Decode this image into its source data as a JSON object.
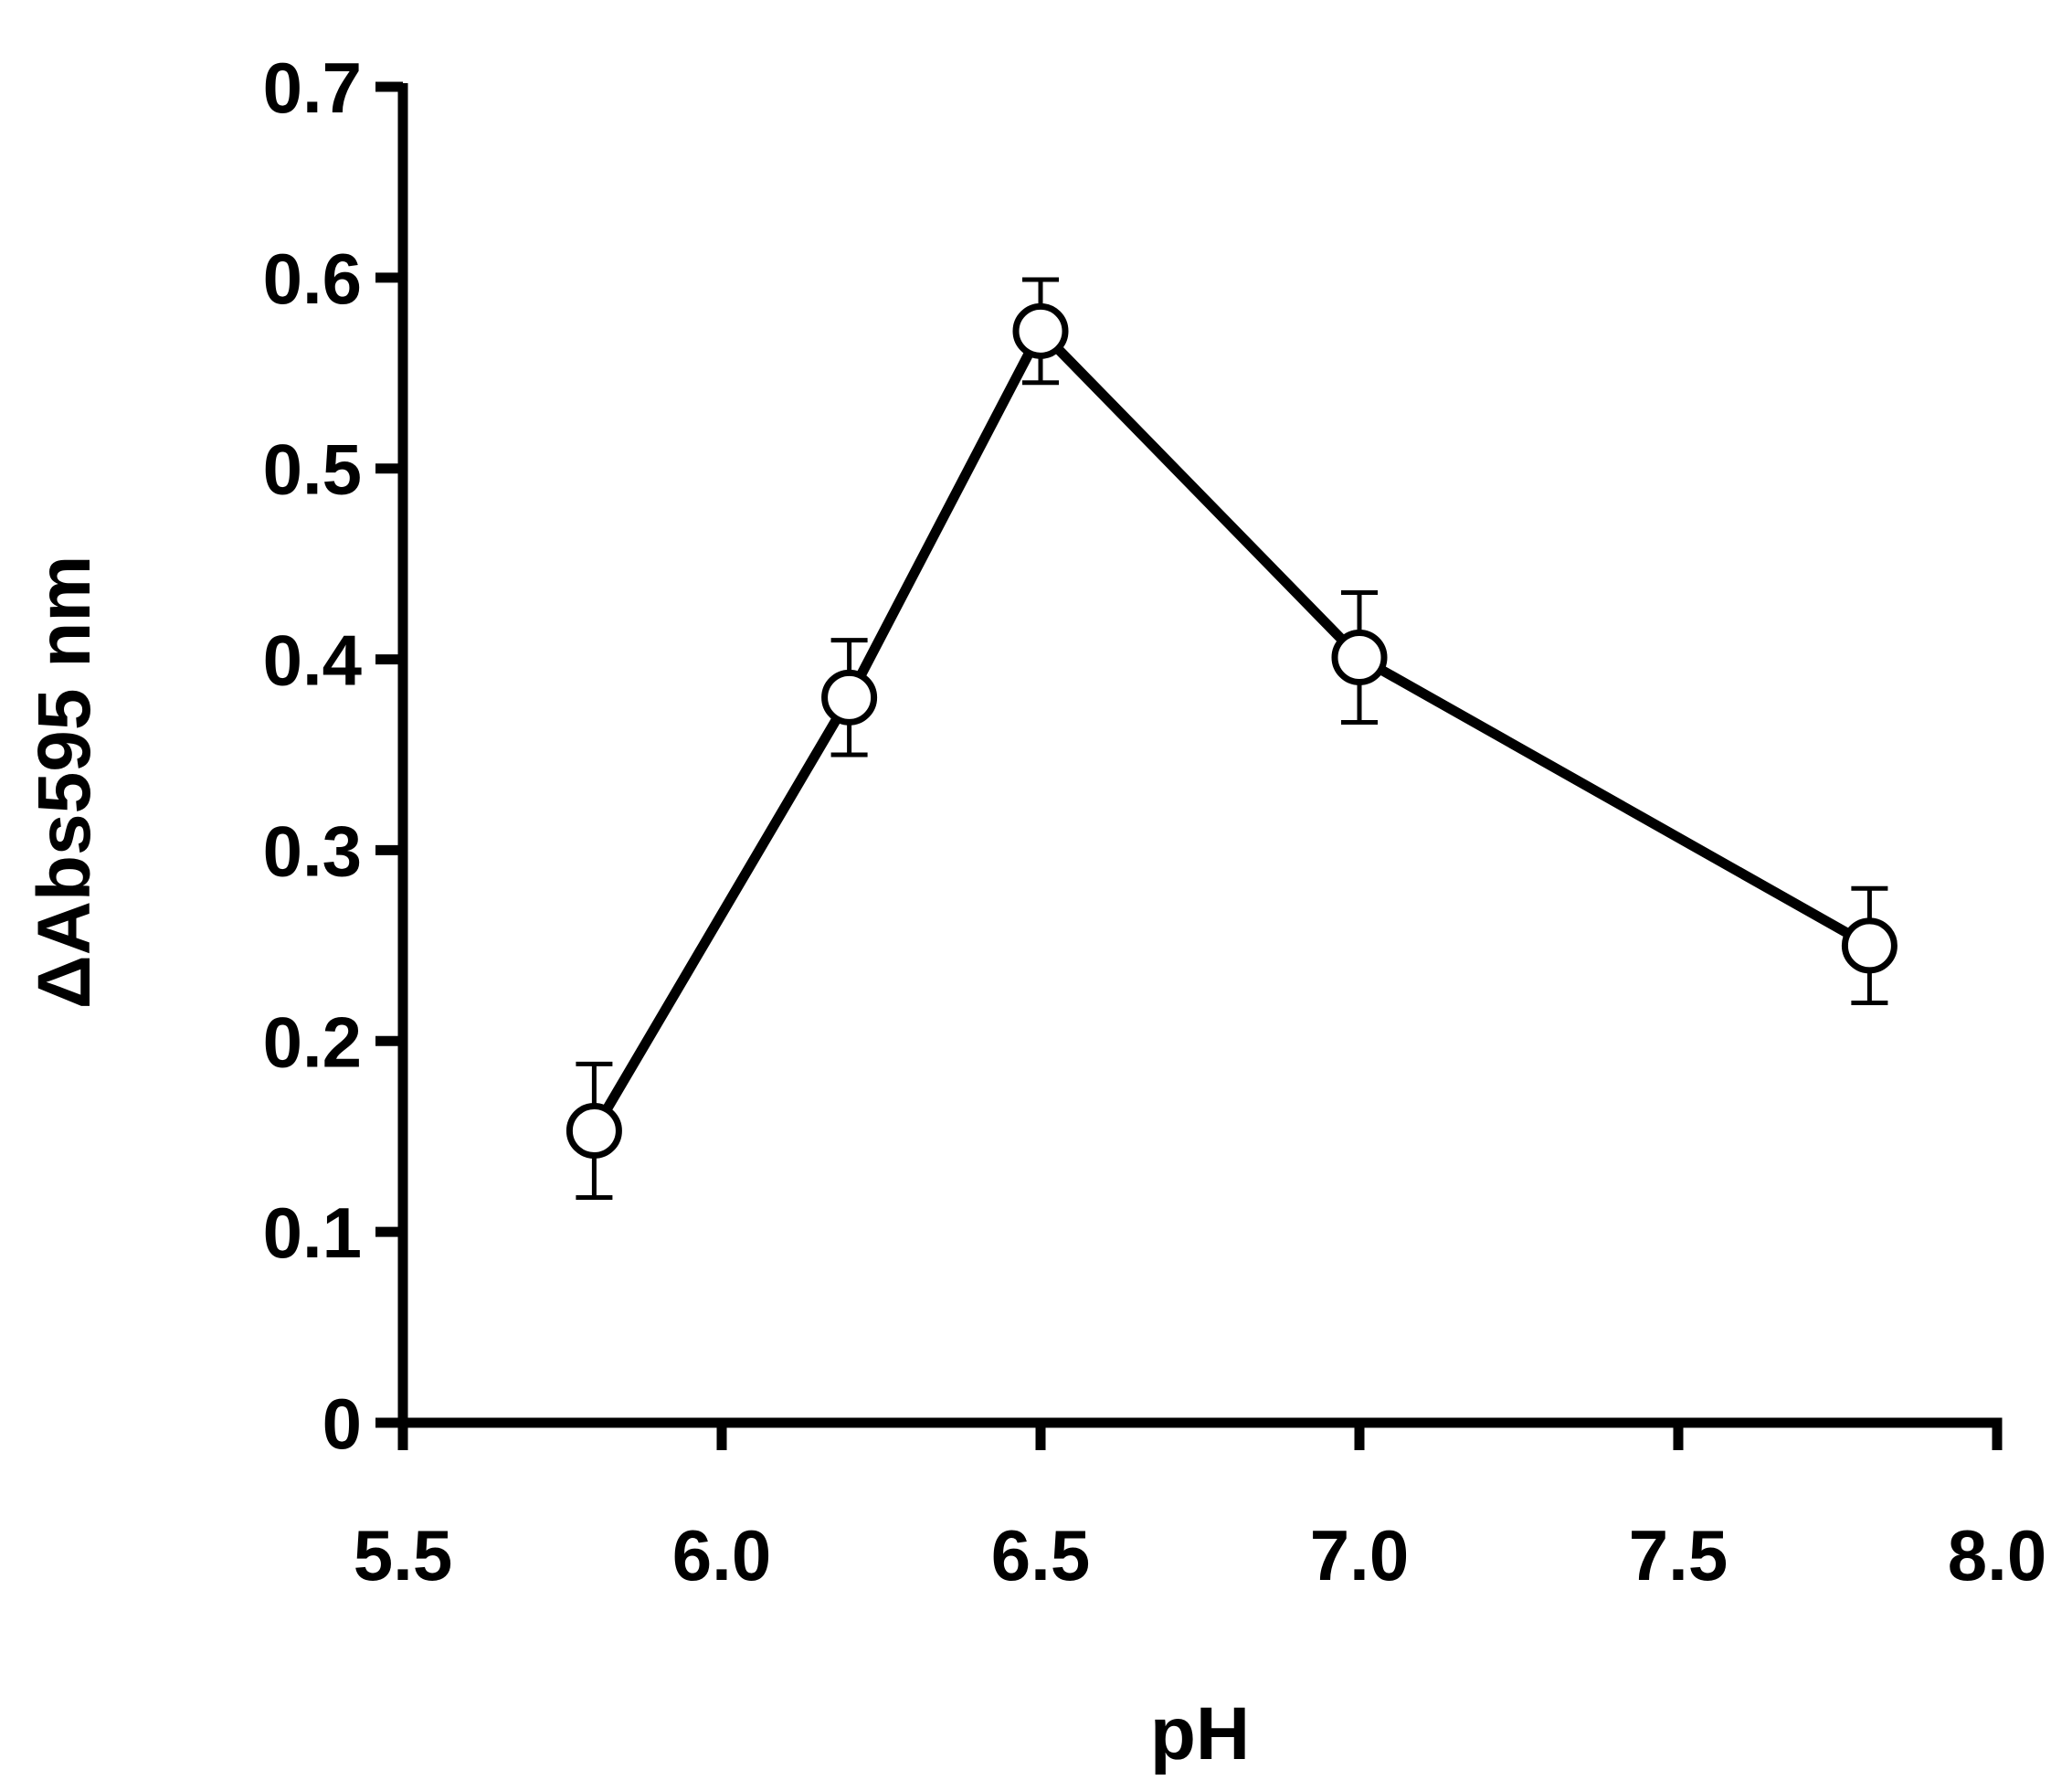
{
  "chart_data": {
    "type": "line",
    "title": "",
    "xlabel": "pH",
    "ylabel": "ΔAbs595 nm",
    "xlim": [
      5.5,
      8.0
    ],
    "ylim": [
      0,
      0.7
    ],
    "x_ticks": [
      "5.5",
      "6.0",
      "6.5",
      "7.0",
      "7.5",
      "8.0"
    ],
    "y_ticks": [
      "0",
      "0.1",
      "0.2",
      "0.3",
      "0.4",
      "0.5",
      "0.6",
      "0.7"
    ],
    "grid": false,
    "legend": "none",
    "series": [
      {
        "x": [
          5.8,
          6.2,
          6.5,
          7.0,
          7.8
        ],
        "y": [
          0.153,
          0.38,
          0.572,
          0.401,
          0.25
        ],
        "error": [
          0.035,
          0.03,
          0.027,
          0.034,
          0.03
        ],
        "marker": "open-circle",
        "color": "#000000"
      }
    ]
  }
}
